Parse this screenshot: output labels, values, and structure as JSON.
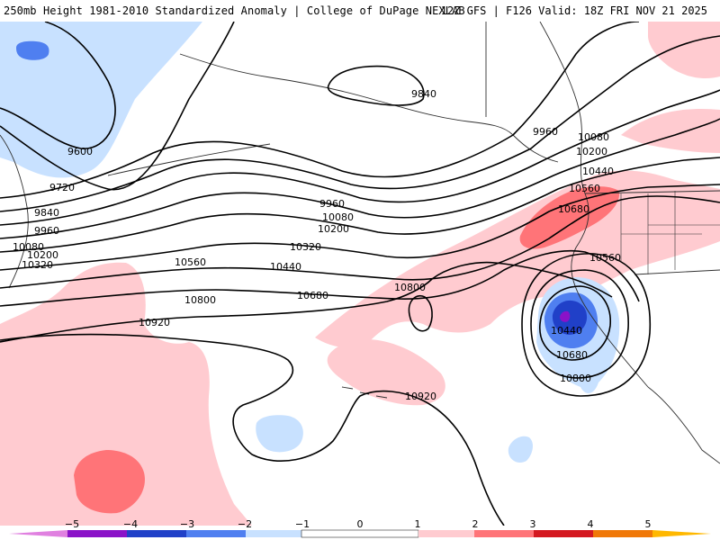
{
  "header": {
    "title": "250mb Height 1981-2010 Standardized Anomaly | College of DuPage NEXLAB",
    "valid": "12Z GFS | F126 Valid: 18Z FRI NOV 21 2025"
  },
  "colors": {
    "neg5": "#e080e0",
    "neg4": "#8a12c8",
    "neg3": "#2040c8",
    "neg2": "#4f7ff0",
    "neg1": "#c8e1ff",
    "pos1": "#ffcbd0",
    "pos2": "#ff7478",
    "pos3": "#d41820",
    "pos4": "#f07808",
    "pos5": "#ffb800"
  },
  "contour_labels": [
    "9600",
    "9720",
    "9840",
    "9840",
    "9960",
    "9960",
    "9960",
    "10080",
    "10080",
    "10080",
    "10200",
    "10200",
    "10200",
    "10320",
    "10320",
    "10440",
    "10440",
    "10440",
    "10560",
    "10560",
    "10560",
    "10680",
    "10680",
    "10680",
    "10800",
    "10800",
    "10800",
    "10920",
    "10920"
  ],
  "colorbar": {
    "ticks": [
      "−5",
      "−4",
      "−3",
      "−2",
      "−1",
      "0",
      "1",
      "2",
      "3",
      "4",
      "5"
    ]
  }
}
